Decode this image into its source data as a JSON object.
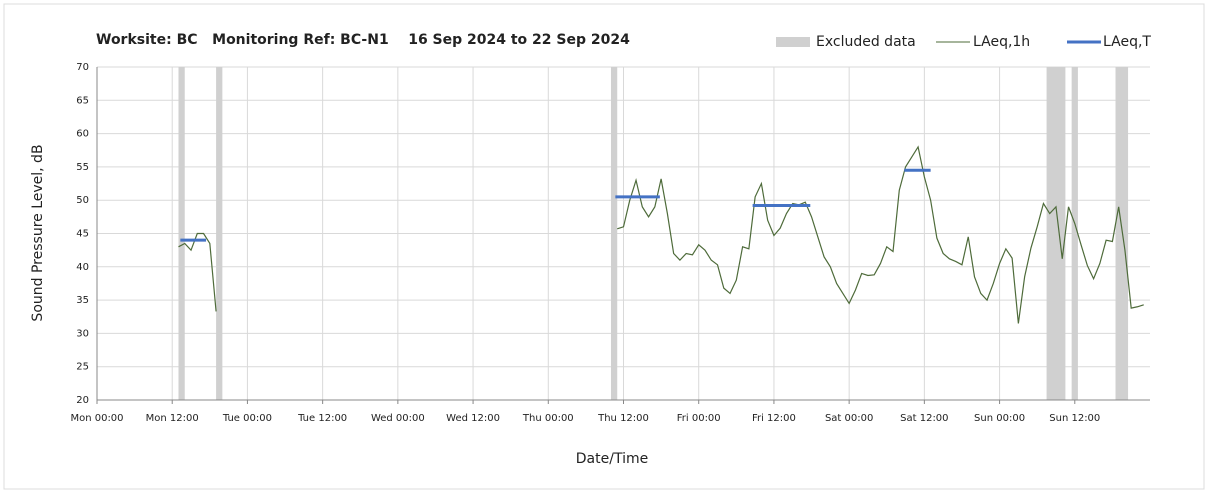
{
  "chart_data": {
    "type": "line",
    "title": "Worksite: BC   Monitoring Ref: BC-N1    16 Sep 2024 to 22 Sep 2024",
    "x_label": "Date/Time",
    "y_label": "Sound Pressure Level, dB",
    "xlim": [
      0,
      168
    ],
    "ylim": [
      20,
      70
    ],
    "xticks": [
      {
        "value": 0,
        "label": "Mon 00:00"
      },
      {
        "value": 12,
        "label": "Mon 12:00"
      },
      {
        "value": 24,
        "label": "Tue 00:00"
      },
      {
        "value": 36,
        "label": "Tue 12:00"
      },
      {
        "value": 48,
        "label": "Wed 00:00"
      },
      {
        "value": 60,
        "label": "Wed 12:00"
      },
      {
        "value": 72,
        "label": "Thu 00:00"
      },
      {
        "value": 84,
        "label": "Thu 12:00"
      },
      {
        "value": 96,
        "label": "Fri 00:00"
      },
      {
        "value": 108,
        "label": "Fri 12:00"
      },
      {
        "value": 120,
        "label": "Sat 00:00"
      },
      {
        "value": 132,
        "label": "Sat 12:00"
      },
      {
        "value": 144,
        "label": "Sun 00:00"
      },
      {
        "value": 156,
        "label": "Sun 12:00"
      }
    ],
    "yticks": [
      20,
      25,
      30,
      35,
      40,
      45,
      50,
      55,
      60,
      65,
      70
    ],
    "grid": true,
    "excluded": {
      "name": "Excluded data",
      "color": "#d0d0d0",
      "ranges": [
        [
          13,
          14
        ],
        [
          19,
          20
        ],
        [
          82,
          83
        ],
        [
          151.5,
          154.5
        ],
        [
          155.5,
          156.5
        ],
        [
          162.5,
          164.5
        ]
      ]
    },
    "x": [
      13,
      14,
      15,
      16,
      17,
      18,
      19,
      50,
      83,
      84,
      85,
      86,
      87,
      88,
      89,
      90,
      91,
      92,
      93,
      94,
      95,
      96,
      97,
      98,
      99,
      100,
      101,
      102,
      103,
      104,
      105,
      106,
      107,
      108,
      109,
      110,
      111,
      112,
      113,
      114,
      115,
      116,
      117,
      118,
      119,
      120,
      121,
      122,
      123,
      124,
      125,
      126,
      127,
      128,
      129,
      130,
      131,
      132,
      133,
      134,
      135,
      136,
      137,
      138,
      139,
      140,
      141,
      142,
      143,
      144,
      145,
      146,
      147,
      148,
      149,
      150,
      151,
      152,
      153,
      154,
      155,
      156,
      157,
      158,
      159,
      160,
      161,
      162,
      163,
      164,
      165,
      166,
      167
    ],
    "series": [
      {
        "name": "LAeq,1h",
        "color": "#4e6b3a",
        "values": [
          43,
          43.5,
          42.5,
          45,
          45,
          43.5,
          33.3,
          null,
          45.7,
          46,
          50,
          53,
          49,
          47.5,
          49,
          53.2,
          48,
          42,
          41,
          42,
          41.8,
          43.3,
          42.5,
          41,
          40.3,
          36.8,
          36,
          38,
          43,
          42.7,
          50.5,
          52.5,
          47,
          44.7,
          45.8,
          48,
          49.5,
          49.3,
          49.7,
          47.5,
          44.5,
          41.5,
          40,
          37.5,
          36,
          34.5,
          36.5,
          39,
          38.7,
          38.8,
          40.5,
          43,
          42.3,
          51.5,
          55,
          56.5,
          58,
          53.5,
          50,
          44.3,
          42,
          41.2,
          40.8,
          40.3,
          44.5,
          38.5,
          36,
          35,
          37.5,
          40.5,
          42.7,
          41.3,
          31.5,
          38.5,
          42.8,
          46,
          49.5,
          48,
          49,
          41.2,
          49,
          46.5,
          43.3,
          40.2,
          38.2,
          40.5,
          44,
          43.8,
          49,
          42.5,
          33.8,
          34,
          34.3
        ]
      }
    ],
    "period": {
      "name": "LAeq,T",
      "color": "#4472c4",
      "segments": [
        {
          "x": [
            13.3,
            17.4
          ],
          "value": 44
        },
        {
          "x": [
            82.7,
            89.8
          ],
          "value": 50.5
        },
        {
          "x": [
            104.6,
            113.8
          ],
          "value": 49.2
        },
        {
          "x": [
            128.8,
            133
          ],
          "value": 54.5
        }
      ]
    }
  }
}
